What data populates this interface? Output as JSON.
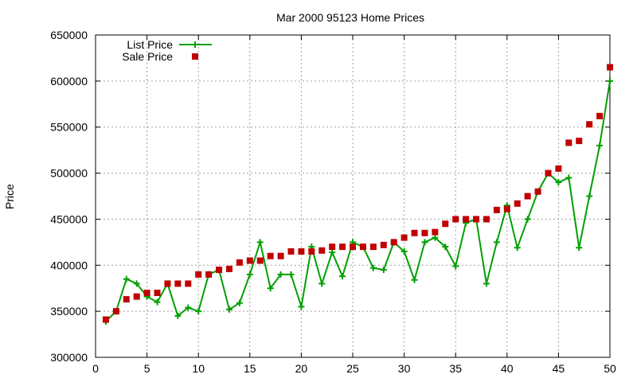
{
  "chart_data": {
    "type": "line",
    "title": "Mar 2000 95123 Home Prices",
    "xlabel": "",
    "ylabel": "Price",
    "xlim": [
      0,
      50
    ],
    "ylim": [
      300000,
      650000
    ],
    "xticks": [
      0,
      5,
      10,
      15,
      20,
      25,
      30,
      35,
      40,
      45,
      50
    ],
    "yticks": [
      300000,
      350000,
      400000,
      450000,
      500000,
      550000,
      600000,
      650000
    ],
    "grid": true,
    "legend_position": "top-left",
    "x": [
      1,
      2,
      3,
      4,
      5,
      6,
      7,
      8,
      9,
      10,
      11,
      12,
      13,
      14,
      15,
      16,
      17,
      18,
      19,
      20,
      21,
      22,
      23,
      24,
      25,
      26,
      27,
      28,
      29,
      30,
      31,
      32,
      33,
      34,
      35,
      36,
      37,
      38,
      39,
      40,
      41,
      42,
      43,
      44,
      45,
      46,
      47,
      48,
      49,
      50
    ],
    "series": [
      {
        "name": "List Price",
        "style": "line-plus",
        "color": "#00a000",
        "values": [
          339000,
          350000,
          385000,
          380000,
          366000,
          360000,
          380000,
          345000,
          354000,
          350000,
          390000,
          395000,
          352000,
          359000,
          390000,
          425000,
          375000,
          390000,
          390000,
          355000,
          420000,
          380000,
          414000,
          388000,
          425000,
          420000,
          397000,
          395000,
          425000,
          415000,
          384000,
          425000,
          430000,
          420000,
          399000,
          446000,
          450000,
          380000,
          425000,
          465000,
          419000,
          450000,
          480000,
          500000,
          490000,
          495000,
          419000,
          475000,
          530000,
          600000
        ]
      },
      {
        "name": "Sale Price",
        "style": "square-points",
        "color": "#c00000",
        "values": [
          341000,
          350000,
          363000,
          366000,
          370000,
          370000,
          380000,
          380000,
          380000,
          390000,
          390000,
          395000,
          396000,
          403000,
          405000,
          405000,
          410000,
          410000,
          415000,
          415000,
          415000,
          416000,
          420000,
          420000,
          420000,
          420000,
          420000,
          422000,
          425000,
          430000,
          435000,
          435000,
          436000,
          445000,
          450000,
          450000,
          450000,
          450000,
          460000,
          461000,
          467000,
          475000,
          480000,
          500000,
          505000,
          533000,
          535000,
          553000,
          562000,
          615000
        ]
      }
    ]
  }
}
